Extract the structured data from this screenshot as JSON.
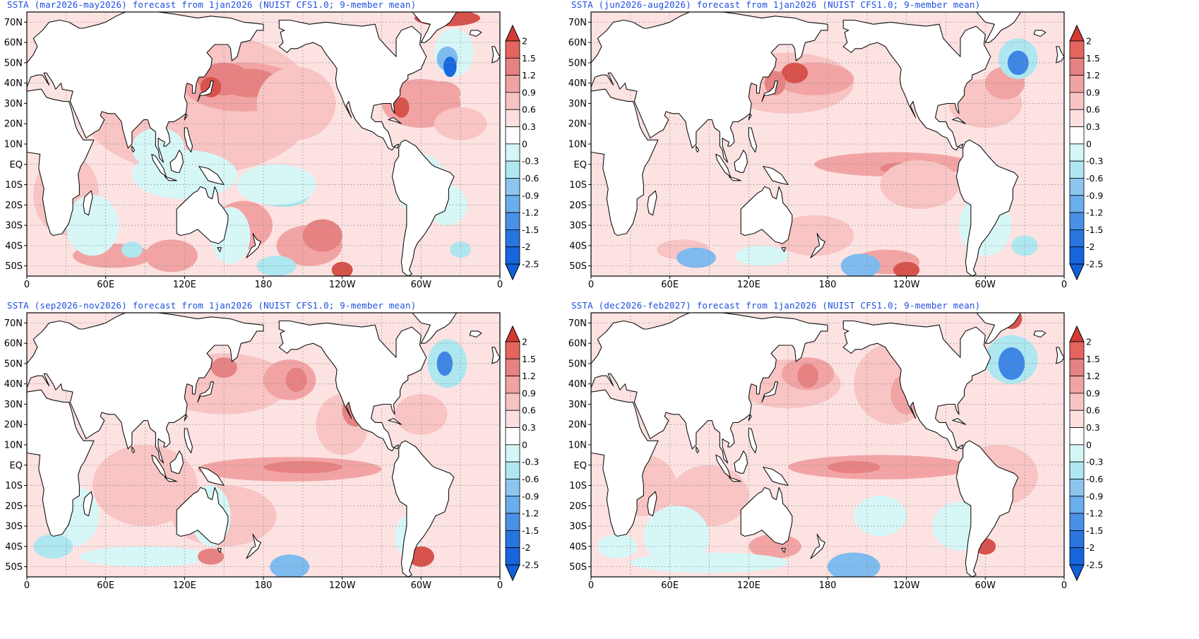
{
  "panels": [
    {
      "title": "SSTA (mar2026-may2026) forecast from 1jan2026 (NUIST CFS1.0; 9-member mean)"
    },
    {
      "title": "SSTA (jun2026-aug2026) forecast from 1jan2026 (NUIST CFS1.0; 9-member mean)"
    },
    {
      "title": "SSTA (sep2026-nov2026) forecast from 1jan2026 (NUIST CFS1.0; 9-member mean)"
    },
    {
      "title": "SSTA (dec2026-feb2027) forecast from 1jan2026 (NUIST CFS1.0; 9-member mean)"
    }
  ],
  "map": {
    "lat_labels": [
      "70N",
      "60N",
      "50N",
      "40N",
      "30N",
      "20N",
      "10N",
      "EQ",
      "10S",
      "20S",
      "30S",
      "40S",
      "50S"
    ],
    "lon_labels": [
      "0",
      "60E",
      "120E",
      "180",
      "120W",
      "60W",
      "0"
    ],
    "lat_range": [
      -55,
      75
    ],
    "lon_range": [
      0,
      360
    ]
  },
  "colorbar": {
    "labels": [
      "2",
      "1.5",
      "1.2",
      "0.9",
      "0.6",
      "0.3",
      "0",
      "-0.3",
      "-0.6",
      "-0.9",
      "-1.2",
      "-1.5",
      "-2",
      "-2.5"
    ],
    "colors": [
      "#d23b34",
      "#e5655e",
      "#e68282",
      "#f0a3a3",
      "#f7c3c3",
      "#fce0e0",
      "#ffffff",
      "#d4f6f6",
      "#aee7f0",
      "#8cc6ee",
      "#6aaeec",
      "#4a90e6",
      "#2a74e0",
      "#1665dc"
    ]
  },
  "scale_colors": {
    "pos1": "#fde2e2",
    "pos2": "#f8c4c4",
    "pos3": "#f2a4a4",
    "pos4": "#e68282",
    "pos5": "#d8524c",
    "neg1": "#d7f7f7",
    "neg2": "#aee7f0",
    "neg3": "#7fbbee",
    "neg4": "#3f86e4",
    "neg5": "#1a68dd"
  }
}
